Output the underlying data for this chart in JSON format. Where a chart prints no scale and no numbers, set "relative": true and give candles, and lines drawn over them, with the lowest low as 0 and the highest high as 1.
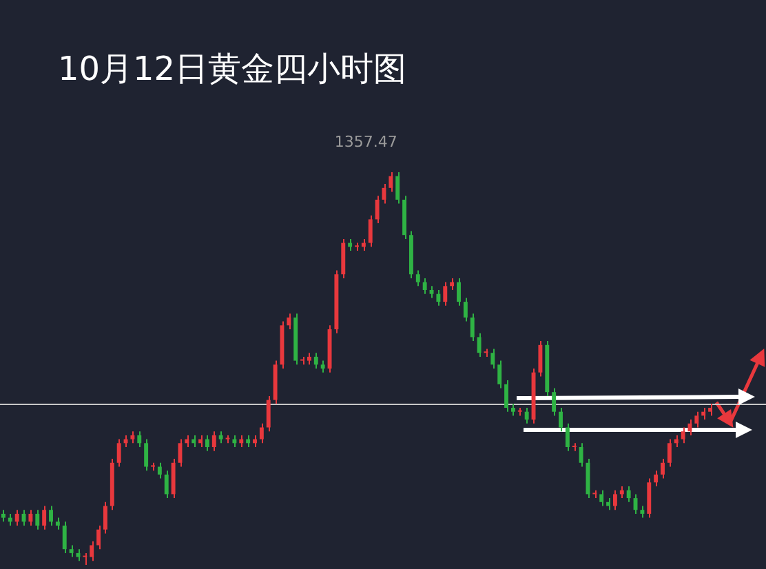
{
  "chart_data": {
    "type": "candlestick",
    "title": "10月12日黄金四小时图",
    "relative": true,
    "categories": [
      null,
      null,
      null,
      null,
      null,
      null,
      null,
      null,
      null,
      null,
      null,
      null,
      null,
      null,
      null,
      null,
      null,
      null,
      null,
      null,
      null,
      null,
      null,
      null,
      null,
      null,
      null,
      null,
      null,
      null,
      null,
      null,
      null,
      null,
      null,
      null,
      null,
      null,
      null,
      null,
      null,
      null,
      null,
      null,
      null,
      null,
      null,
      null,
      null,
      null,
      null,
      null,
      null,
      null,
      null,
      null,
      null,
      null,
      null,
      null,
      null,
      null,
      null,
      null,
      null,
      null,
      null,
      null,
      null,
      null,
      null,
      null,
      null,
      null,
      null,
      null,
      null,
      null,
      null,
      null,
      null,
      null,
      null,
      null,
      null,
      null,
      null,
      null,
      null,
      null,
      null,
      null,
      null,
      null,
      null,
      null,
      null,
      null,
      null,
      null,
      null,
      null,
      null,
      null,
      null
    ],
    "ohlc": [
      [
        0.13,
        0.14,
        0.11,
        0.12
      ],
      [
        0.12,
        0.13,
        0.1,
        0.11
      ],
      [
        0.11,
        0.14,
        0.1,
        0.13
      ],
      [
        0.13,
        0.14,
        0.1,
        0.11
      ],
      [
        0.11,
        0.14,
        0.1,
        0.13
      ],
      [
        0.13,
        0.14,
        0.09,
        0.1
      ],
      [
        0.1,
        0.15,
        0.09,
        0.14
      ],
      [
        0.14,
        0.15,
        0.1,
        0.11
      ],
      [
        0.11,
        0.12,
        0.09,
        0.1
      ],
      [
        0.1,
        0.11,
        0.03,
        0.04
      ],
      [
        0.04,
        0.05,
        0.02,
        0.03
      ],
      [
        0.03,
        0.04,
        0.01,
        0.02
      ],
      [
        0.02,
        0.03,
        0,
        0.02
      ],
      [
        0.02,
        0.06,
        0.01,
        0.05
      ],
      [
        0.05,
        0.1,
        0.04,
        0.09
      ],
      [
        0.09,
        0.16,
        0.08,
        0.15
      ],
      [
        0.15,
        0.27,
        0.14,
        0.26
      ],
      [
        0.26,
        0.32,
        0.25,
        0.31
      ],
      [
        0.31,
        0.33,
        0.3,
        0.32
      ],
      [
        0.32,
        0.34,
        0.31,
        0.33
      ],
      [
        0.33,
        0.34,
        0.3,
        0.31
      ],
      [
        0.31,
        0.32,
        0.24,
        0.25
      ],
      [
        0.25,
        0.26,
        0.24,
        0.25
      ],
      [
        0.25,
        0.26,
        0.22,
        0.23
      ],
      [
        0.23,
        0.24,
        0.17,
        0.18
      ],
      [
        0.18,
        0.27,
        0.17,
        0.26
      ],
      [
        0.26,
        0.32,
        0.25,
        0.31
      ],
      [
        0.31,
        0.33,
        0.3,
        0.32
      ],
      [
        0.32,
        0.33,
        0.3,
        0.31
      ],
      [
        0.31,
        0.33,
        0.3,
        0.32
      ],
      [
        0.32,
        0.33,
        0.29,
        0.3
      ],
      [
        0.3,
        0.34,
        0.29,
        0.33
      ],
      [
        0.33,
        0.34,
        0.31,
        0.32
      ],
      [
        0.32,
        0.33,
        0.31,
        0.32
      ],
      [
        0.32,
        0.33,
        0.3,
        0.31
      ],
      [
        0.31,
        0.33,
        0.3,
        0.32
      ],
      [
        0.32,
        0.33,
        0.3,
        0.31
      ],
      [
        0.31,
        0.33,
        0.3,
        0.32
      ],
      [
        0.32,
        0.36,
        0.31,
        0.35
      ],
      [
        0.35,
        0.43,
        0.34,
        0.42
      ],
      [
        0.42,
        0.52,
        0.41,
        0.51
      ],
      [
        0.51,
        0.62,
        0.5,
        0.61
      ],
      [
        0.61,
        0.64,
        0.6,
        0.63
      ],
      [
        0.63,
        0.64,
        0.51,
        0.52
      ],
      [
        0.52,
        0.53,
        0.51,
        0.52
      ],
      [
        0.52,
        0.54,
        0.51,
        0.53
      ],
      [
        0.53,
        0.54,
        0.5,
        0.51
      ],
      [
        0.51,
        0.52,
        0.49,
        0.5
      ],
      [
        0.5,
        0.61,
        0.49,
        0.6
      ],
      [
        0.6,
        0.75,
        0.59,
        0.74
      ],
      [
        0.74,
        0.83,
        0.73,
        0.82
      ],
      [
        0.82,
        0.83,
        0.8,
        0.81
      ],
      [
        0.81,
        0.82,
        0.8,
        0.81
      ],
      [
        0.81,
        0.83,
        0.8,
        0.82
      ],
      [
        0.82,
        0.89,
        0.81,
        0.88
      ],
      [
        0.88,
        0.94,
        0.87,
        0.93
      ],
      [
        0.93,
        0.97,
        0.92,
        0.96
      ],
      [
        0.96,
        1,
        0.95,
        0.99
      ],
      [
        0.99,
        1,
        0.92,
        0.93
      ],
      [
        0.93,
        0.94,
        0.83,
        0.84
      ],
      [
        0.84,
        0.85,
        0.73,
        0.74
      ],
      [
        0.74,
        0.75,
        0.71,
        0.72
      ],
      [
        0.72,
        0.73,
        0.69,
        0.7
      ],
      [
        0.7,
        0.71,
        0.68,
        0.69
      ],
      [
        0.69,
        0.7,
        0.66,
        0.67
      ],
      [
        0.67,
        0.72,
        0.66,
        0.71
      ],
      [
        0.71,
        0.73,
        0.7,
        0.72
      ],
      [
        0.72,
        0.73,
        0.66,
        0.67
      ],
      [
        0.67,
        0.68,
        0.62,
        0.63
      ],
      [
        0.63,
        0.64,
        0.57,
        0.58
      ],
      [
        0.58,
        0.59,
        0.53,
        0.54
      ],
      [
        0.54,
        0.55,
        0.53,
        0.54
      ],
      [
        0.54,
        0.55,
        0.5,
        0.51
      ],
      [
        0.51,
        0.52,
        0.45,
        0.46
      ],
      [
        0.46,
        0.47,
        0.39,
        0.4
      ],
      [
        0.4,
        0.41,
        0.38,
        0.39
      ],
      [
        0.39,
        0.4,
        0.38,
        0.39
      ],
      [
        0.39,
        0.4,
        0.36,
        0.37
      ],
      [
        0.37,
        0.5,
        0.36,
        0.49
      ],
      [
        0.49,
        0.57,
        0.48,
        0.56
      ],
      [
        0.56,
        0.57,
        0.43,
        0.44
      ],
      [
        0.44,
        0.45,
        0.38,
        0.39
      ],
      [
        0.39,
        0.4,
        0.34,
        0.35
      ],
      [
        0.35,
        0.36,
        0.29,
        0.3
      ],
      [
        0.3,
        0.31,
        0.29,
        0.3
      ],
      [
        0.3,
        0.31,
        0.25,
        0.26
      ],
      [
        0.26,
        0.27,
        0.17,
        0.18
      ],
      [
        0.18,
        0.19,
        0.17,
        0.18
      ],
      [
        0.18,
        0.19,
        0.15,
        0.16
      ],
      [
        0.16,
        0.17,
        0.14,
        0.15
      ],
      [
        0.15,
        0.19,
        0.14,
        0.18
      ],
      [
        0.18,
        0.2,
        0.17,
        0.19
      ],
      [
        0.19,
        0.2,
        0.16,
        0.17
      ],
      [
        0.17,
        0.18,
        0.13,
        0.14
      ],
      [
        0.14,
        0.15,
        0.12,
        0.13
      ],
      [
        0.13,
        0.22,
        0.12,
        0.21
      ],
      [
        0.21,
        0.24,
        0.2,
        0.23
      ],
      [
        0.23,
        0.27,
        0.22,
        0.26
      ],
      [
        0.26,
        0.32,
        0.25,
        0.31
      ],
      [
        0.31,
        0.33,
        0.3,
        0.32
      ],
      [
        0.32,
        0.35,
        0.31,
        0.34
      ],
      [
        0.34,
        0.37,
        0.33,
        0.36
      ],
      [
        0.36,
        0.39,
        0.35,
        0.38
      ],
      [
        0.38,
        0.4,
        0.37,
        0.39
      ],
      [
        0.39,
        0.41,
        0.38,
        0.4
      ]
    ],
    "colors": [
      "#2fb344",
      "#2fb344",
      "#e8383d",
      "#2fb344",
      "#e8383d",
      "#2fb344",
      "#e8383d",
      "#2fb344",
      "#2fb344",
      "#2fb344",
      "#2fb344",
      "#2fb344",
      "#e8383d",
      "#e8383d",
      "#e8383d",
      "#e8383d",
      "#e8383d",
      "#e8383d",
      "#e8383d",
      "#e8383d",
      "#2fb344",
      "#2fb344",
      "#e8383d",
      "#2fb344",
      "#2fb344",
      "#e8383d",
      "#e8383d",
      "#e8383d",
      "#2fb344",
      "#e8383d",
      "#2fb344",
      "#e8383d",
      "#2fb344",
      "#e8383d",
      "#2fb344",
      "#e8383d",
      "#2fb344",
      "#e8383d",
      "#e8383d",
      "#e8383d",
      "#e8383d",
      "#e8383d",
      "#e8383d",
      "#2fb344",
      "#e8383d",
      "#e8383d",
      "#2fb344",
      "#2fb344",
      "#e8383d",
      "#e8383d",
      "#e8383d",
      "#2fb344",
      "#e8383d",
      "#e8383d",
      "#e8383d",
      "#e8383d",
      "#e8383d",
      "#e8383d",
      "#2fb344",
      "#2fb344",
      "#2fb344",
      "#2fb344",
      "#2fb344",
      "#2fb344",
      "#2fb344",
      "#e8383d",
      "#e8383d",
      "#2fb344",
      "#2fb344",
      "#2fb344",
      "#2fb344",
      "#e8383d",
      "#2fb344",
      "#2fb344",
      "#2fb344",
      "#2fb344",
      "#e8383d",
      "#2fb344",
      "#e8383d",
      "#e8383d",
      "#2fb344",
      "#2fb344",
      "#2fb344",
      "#2fb344",
      "#e8383d",
      "#2fb344",
      "#2fb344",
      "#e8383d",
      "#2fb344",
      "#2fb344",
      "#e8383d",
      "#e8383d",
      "#2fb344",
      "#2fb344",
      "#2fb344",
      "#e8383d",
      "#e8383d",
      "#e8383d",
      "#e8383d",
      "#e8383d",
      "#e8383d",
      "#e8383d",
      "#e8383d",
      "#e8383d",
      "#e8383d"
    ],
    "ref_lines": [
      {
        "axis": "y",
        "value": 0.41,
        "color": "#c8c8c8"
      }
    ],
    "annotations": [
      "1357.47"
    ]
  }
}
